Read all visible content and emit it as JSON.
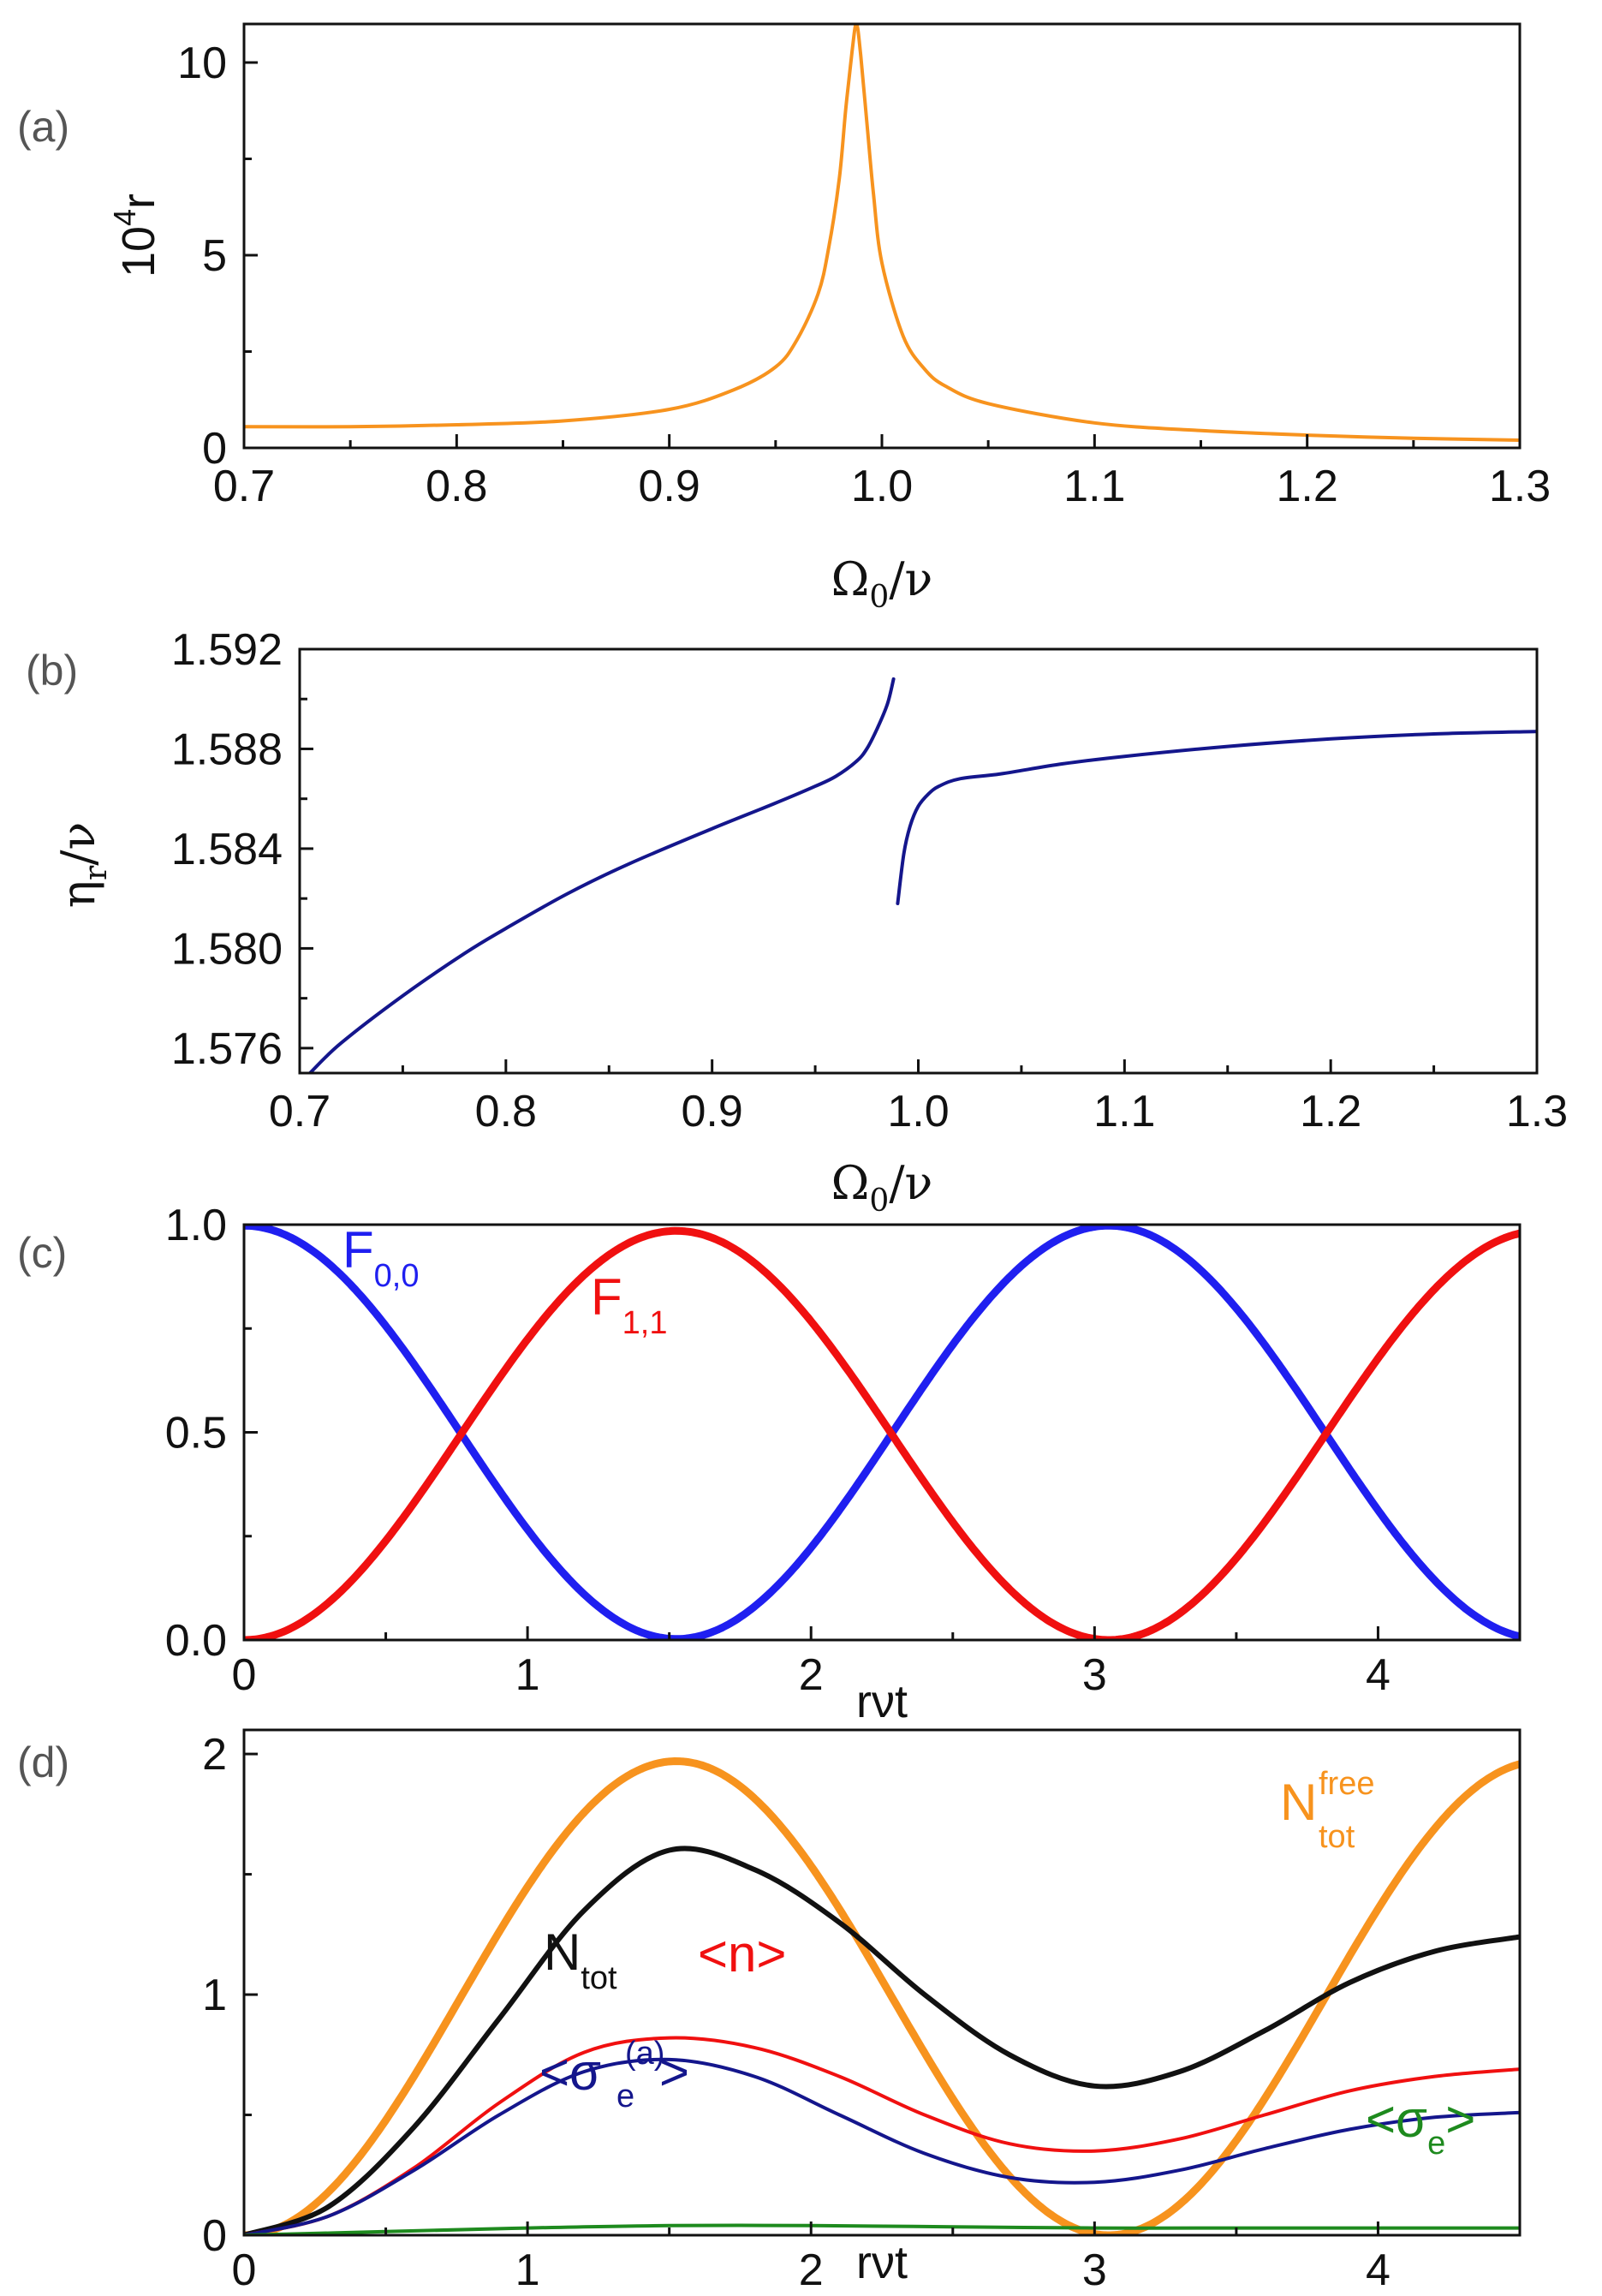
{
  "figure": {
    "colors": {
      "orange": "#f7931e",
      "navy": "#14168c",
      "blue": "#1f1ff0",
      "red": "#f01010",
      "black": "#111111",
      "green": "#1e8a1e",
      "panel_label": "#555555"
    }
  },
  "chart_data": [
    {
      "id": "a",
      "type": "line",
      "panel_label": "(a)",
      "xlabel": {
        "main": "Ω",
        "sub": "0",
        "rest": "/ν"
      },
      "ylabel": {
        "pre": "10",
        "sup": "4",
        "post": "r"
      },
      "xlim": [
        0.7,
        1.3
      ],
      "ylim": [
        0,
        11
      ],
      "xticks": [
        0.7,
        0.8,
        0.9,
        1.0,
        1.1,
        1.2,
        1.3
      ],
      "xtick_labels": [
        "0.7",
        "0.8",
        "0.9",
        "1.0",
        "1.1",
        "1.2",
        "1.3"
      ],
      "yticks": [
        0,
        5,
        10
      ],
      "ytick_labels": [
        "0",
        "5",
        "10"
      ],
      "series": [
        {
          "name": "r",
          "color": "#f7931e",
          "x": [
            0.7,
            0.75,
            0.8,
            0.85,
            0.9,
            0.93,
            0.95,
            0.96,
            0.97,
            0.975,
            0.98,
            0.983,
            0.986,
            0.988,
            0.99,
            0.993,
            0.996,
            1.0,
            1.01,
            1.02,
            1.03,
            1.05,
            1.1,
            1.15,
            1.2,
            1.25,
            1.3
          ],
          "y": [
            0.55,
            0.55,
            0.6,
            0.7,
            1.0,
            1.5,
            2.1,
            2.8,
            4.0,
            5.2,
            7.0,
            8.8,
            10.3,
            11.0,
            10.2,
            8.4,
            6.6,
            4.8,
            2.9,
            2.05,
            1.6,
            1.15,
            0.65,
            0.45,
            0.33,
            0.25,
            0.2
          ]
        }
      ]
    },
    {
      "id": "b",
      "type": "line",
      "panel_label": "(b)",
      "xlabel": {
        "main": "Ω",
        "sub": "0",
        "rest": "/ν"
      },
      "ylabel": {
        "pre": "η",
        "sub": "r",
        "post": "/ν"
      },
      "xlim": [
        0.7,
        1.3
      ],
      "ylim": [
        1.575,
        1.592
      ],
      "xticks": [
        0.7,
        0.8,
        0.9,
        1.0,
        1.1,
        1.2,
        1.3
      ],
      "xtick_labels": [
        "0.7",
        "0.8",
        "0.9",
        "1.0",
        "1.1",
        "1.2",
        "1.3"
      ],
      "yticks": [
        1.576,
        1.58,
        1.584,
        1.588,
        1.592
      ],
      "ytick_labels": [
        "1.576",
        "1.580",
        "1.584",
        "1.588",
        "1.592"
      ],
      "series": [
        {
          "name": "η_r/ν (lower branch)",
          "color": "#14168c",
          "x": [
            0.705,
            0.72,
            0.75,
            0.78,
            0.8,
            0.83,
            0.86,
            0.9,
            0.93,
            0.95,
            0.96,
            0.97,
            0.975,
            0.98,
            0.985,
            0.988
          ],
          "y": [
            1.575,
            1.5762,
            1.5781,
            1.5798,
            1.5808,
            1.5822,
            1.5834,
            1.5848,
            1.5858,
            1.5865,
            1.5869,
            1.5875,
            1.588,
            1.5888,
            1.5898,
            1.5908
          ]
        },
        {
          "name": "η_r/ν (upper branch)",
          "color": "#14168c",
          "x": [
            0.99,
            0.993,
            0.996,
            1.0,
            1.005,
            1.01,
            1.02,
            1.04,
            1.07,
            1.1,
            1.15,
            1.2,
            1.25,
            1.3
          ],
          "y": [
            1.5818,
            1.5838,
            1.5849,
            1.5857,
            1.5862,
            1.5865,
            1.5868,
            1.587,
            1.5874,
            1.5877,
            1.5881,
            1.5884,
            1.5886,
            1.5887
          ]
        }
      ]
    },
    {
      "id": "c",
      "type": "line",
      "panel_label": "(c)",
      "xlabel": "rνt",
      "xlim": [
        0,
        4.5
      ],
      "ylim": [
        0,
        1.0
      ],
      "xticks": [
        0,
        1,
        2,
        3,
        4
      ],
      "xtick_labels": [
        "0",
        "1",
        "2",
        "3",
        "4"
      ],
      "yticks": [
        0,
        0.5,
        1.0
      ],
      "ytick_labels": [
        "0.0",
        "0.5",
        "1.0"
      ],
      "series": [
        {
          "name": "F0,0",
          "color": "#1f1ff0",
          "x": [
            0,
            4.5
          ],
          "formula": "cos2"
        },
        {
          "name": "F1,1",
          "color": "#f01010",
          "x": [
            0,
            4.5
          ],
          "formula": "sin2"
        }
      ],
      "annotations": [
        {
          "main": "F",
          "sub": "0,0",
          "color": "#1f1ff0"
        },
        {
          "main": "F",
          "sub": "1,1",
          "color": "#f01010"
        }
      ]
    },
    {
      "id": "d",
      "type": "line",
      "panel_label": "(d)",
      "xlabel": "rνt",
      "xlim": [
        0,
        4.5
      ],
      "ylim": [
        0,
        2.1
      ],
      "xticks": [
        0,
        1,
        2,
        3,
        4
      ],
      "xtick_labels": [
        "0",
        "1",
        "2",
        "3",
        "4"
      ],
      "yticks": [
        0,
        1,
        2
      ],
      "ytick_labels": [
        "0",
        "1",
        "2"
      ],
      "series": [
        {
          "name": "N_tot^free",
          "color": "#f7931e",
          "x": [
            0,
            4.5
          ],
          "formula": "2sin2"
        },
        {
          "name": "N_tot",
          "color": "#111111",
          "x": [
            0,
            0.3,
            0.6,
            0.9,
            1.2,
            1.5,
            1.8,
            2.1,
            2.4,
            2.7,
            3.0,
            3.3,
            3.6,
            3.9,
            4.2,
            4.5
          ],
          "y": [
            0.0,
            0.12,
            0.45,
            0.9,
            1.35,
            1.6,
            1.52,
            1.3,
            1.0,
            0.75,
            0.62,
            0.68,
            0.85,
            1.05,
            1.18,
            1.24
          ]
        },
        {
          "name": "<n>",
          "color": "#f01010",
          "x": [
            0,
            0.3,
            0.6,
            0.9,
            1.2,
            1.5,
            1.8,
            2.1,
            2.4,
            2.7,
            3.0,
            3.3,
            3.6,
            3.9,
            4.2,
            4.5
          ],
          "y": [
            0.0,
            0.08,
            0.28,
            0.55,
            0.76,
            0.82,
            0.78,
            0.66,
            0.5,
            0.38,
            0.35,
            0.4,
            0.5,
            0.6,
            0.66,
            0.69
          ]
        },
        {
          "name": "<σe(a)>",
          "color": "#14168c",
          "x": [
            0,
            0.3,
            0.6,
            0.9,
            1.2,
            1.5,
            1.8,
            2.1,
            2.4,
            2.7,
            3.0,
            3.3,
            3.6,
            3.9,
            4.2,
            4.5
          ],
          "y": [
            0.0,
            0.08,
            0.27,
            0.5,
            0.68,
            0.73,
            0.66,
            0.5,
            0.34,
            0.24,
            0.22,
            0.27,
            0.36,
            0.44,
            0.49,
            0.51
          ]
        },
        {
          "name": "<σe>",
          "color": "#1e8a1e",
          "x": [
            0,
            0.5,
            1.0,
            1.5,
            2.0,
            2.5,
            3.0,
            3.5,
            4.0,
            4.5
          ],
          "y": [
            0.0,
            0.015,
            0.03,
            0.04,
            0.04,
            0.035,
            0.03,
            0.03,
            0.03,
            0.03
          ]
        }
      ],
      "annotations": [
        {
          "main": "N",
          "sub": "tot",
          "sup": "free",
          "color": "#f7931e"
        },
        {
          "main": "N",
          "sub": "tot",
          "color": "#111111"
        },
        {
          "main": "<n>",
          "color": "#f01010"
        },
        {
          "main": "<σ",
          "sub": "e",
          "sup": "(a)",
          "post": ">",
          "color": "#14168c"
        },
        {
          "main": "<σ",
          "sub": "e",
          "post": ">",
          "color": "#1e8a1e"
        }
      ]
    }
  ]
}
